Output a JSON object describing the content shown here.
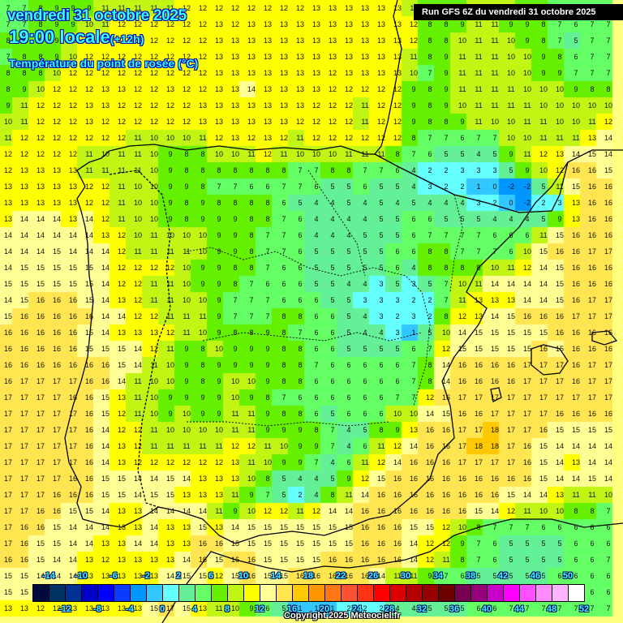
{
  "header": {
    "date_line": "vendredi 31 octobre 2025",
    "time_line": "19:00 locale",
    "time_offset": "(+12h)",
    "parameter": "Température du point de rosée (°C)"
  },
  "run_banner": "Run GFS 6Z du vendredi 31 octobre 2025",
  "copyright": "Copyright 2025 Meteociel.fr",
  "legend": {
    "top_labels": [
      "-14",
      "-10",
      "-6",
      "-2",
      "2",
      "6",
      "10",
      "14",
      "18",
      "22",
      "26",
      "30",
      "34",
      "38",
      "42",
      "46",
      "50"
    ],
    "bottom_labels": [
      "-12",
      "-8",
      "-4",
      "0",
      "4",
      "8",
      "12",
      "16",
      "20",
      "24",
      "28",
      "32",
      "36",
      "40",
      "44",
      "48",
      "52"
    ],
    "colors": [
      "#000a3c",
      "#003264",
      "#003296",
      "#0000c8",
      "#0000ff",
      "#0a3cff",
      "#0096ff",
      "#32c8ff",
      "#64ffff",
      "#64f096",
      "#64ff64",
      "#64f000",
      "#c0f514",
      "#ffff00",
      "#ffff96",
      "#ffe650",
      "#ffc800",
      "#ff9600",
      "#ff7814",
      "#ff5032",
      "#ff3214",
      "#ff0000",
      "#dc0000",
      "#b40000",
      "#960000",
      "#6e0000",
      "#780050",
      "#960078",
      "#c800c8",
      "#ff00ff",
      "#ff50ff",
      "#ff8cff",
      "#ffb4ff",
      "#ffffff"
    ]
  },
  "map": {
    "region": "Péninsule Ibérique",
    "grid_origin": [
      5,
      0
    ],
    "grid_step": 20,
    "rows": [
      "7 7 8 9 9 9 11 11 11 11 11 12 12 12 12 12 12 12 12 13 13 13 13 13 13 11 9 8 9 10 10 10 9 8 7 7 7 7",
      "7 7 8 9 9 10 11 12 12 12 12 12 12 13 12 13 13 13 13 13 13 13 13 13 13 12 8 8 9 11 11 9 9 8 7 6 7 7",
      "8 8 8 9 10 12 12 12 12 12 12 12 12 13 13 13 13 13 13 13 13 13 13 13 13 12 8 8 10 11 11 10 9 8 7 5 7 7",
      "7 8 8 9 10 12 12 12 12 12 12 12 12 13 13 13 13 13 13 13 13 13 13 13 13 11 8 9 11 11 11 10 10 9 8 6 7 7",
      "8 8 8 10 12 12 12 12 12 12 12 12 12 13 13 13 13 13 13 13 12 13 13 13 13 10 7 9 11 11 11 10 10 9 9 7 7 7",
      "8 9 10 12 12 12 13 13 12 12 13 12 12 13 13 14 13 13 13 13 12 12 12 12 12 9 8 9 11 11 11 11 10 10 10 9 8 8",
      "9 11 12 12 12 13 13 12 12 12 12 12 13 13 13 13 13 13 13 12 12 12 11 12 12 9 8 9 10 11 11 11 11 10 10 10 10 10",
      "10 11 12 12 12 13 12 12 12 12 12 12 13 13 13 13 13 13 12 12 12 12 11 12 12 9 8 8 9 11 10 10 11 11 10 10 11 12",
      "11 12 12 12 12 12 12 12 11 10 10 10 11 12 13 12 13 12 11 12 12 12 12 12 12 8 7 7 6 7 7 10 10 11 11 11 13 14",
      "12 12 12 12 12 11 10 11 11 10 9 8 8 10 10 11 12 11 10 10 10 11 11 11 8 7 6 5 5 4 5 9 11 12 13 14 15 14",
      "12 13 13 13 13 11 11 11 11 10 9 8 8 8 8 8 8 8 7 7 8 8 7 7 6 4 2 2 3 3 3 5 9 10 12 16 16 15",
      "13 13 13 13 13 12 12 11 10 10 9 9 8 7 7 6 6 7 7 6 5 5 6 5 5 4 3 2 2 1 0 -2 -2 5 11 15 16 16",
      "13 13 13 13 13 12 12 11 10 10 9 8 9 8 8 8 8 6 5 4 4 5 4 5 4 5 4 4 4 3 2 0 -2 2 3 13 16 16",
      "13 14 14 14 13 14 12 11 10 10 9 8 9 9 9 8 8 7 6 4 4 4 4 5 5 6 6 5 5 5 4 4 4 5 9 13 16 16",
      "14 14 14 14 14 14 13 12 10 11 10 10 10 9 9 8 7 7 6 4 4 4 5 5 5 6 7 7 7 7 6 6 6 11 15 16 16 16",
      "14 14 14 15 14 14 14 12 11 11 11 11 10 9 9 8 7 7 6 5 5 5 5 5 6 6 8 8 7 7 7 6 10 15 16 16 17 17",
      "14 15 15 15 15 15 14 12 12 12 12 10 9 9 8 8 7 6 6 5 5 5 5 5 6 4 8 8 8 8 10 11 12 14 15 16 16 16",
      "15 15 15 15 15 15 14 12 12 11 11 10 9 9 8 7 6 6 6 5 5 4 4 3 5 3 5 7 10 11 14 14 14 14 15 16 16 16",
      "14 15 16 16 16 15 14 13 12 11 11 10 10 9 7 7 7 6 6 6 5 5 3 3 3 2 2 7 11 13 13 13 14 14 15 16 17 17",
      "15 16 16 16 16 16 14 14 12 12 11 11 11 9 7 7 7 8 8 6 6 5 4 3 2 3 2 8 12 13 14 15 16 16 16 17 17 17",
      "16 16 16 16 16 15 14 13 13 13 12 11 10 9 8 8 9 8 7 6 6 5 4 4 3 1 5 10 14 15 15 15 15 15 16 16 16 16",
      "16 16 16 16 16 15 15 15 14 12 11 9 8 10 9 9 9 8 8 6 6 5 5 5 5 6 7 12 15 15 15 15 15 16 15 16 16 16",
      "16 16 16 16 16 16 16 15 14 11 10 9 8 9 9 9 9 8 8 7 6 6 6 6 6 7 8 14 16 16 16 16 17 17 17 16 17 17",
      "16 17 17 17 17 16 16 14 11 10 10 9 8 9 10 10 9 8 8 6 6 6 6 6 6 7 8 14 16 16 16 16 17 17 17 16 17 17",
      "17 17 17 17 16 16 15 13 11 10 9 9 9 9 10 9 8 7 6 6 6 6 6 6 7 7 12 16 17 17 17 17 17 17 17 17 17 17",
      "17 17 17 17 17 16 15 12 11 10 9 10 9 9 11 11 9 8 8 6 5 6 6 6 10 10 14 15 16 16 17 17 17 17 16 16 16 16",
      "17 17 17 17 17 16 14 12 12 11 10 10 10 10 11 11 9 9 9 8 7 4 5 8 9 13 16 16 17 17 18 17 17 16 15 15 15 15",
      "17 17 17 17 17 16 14 13 12 11 11 11 11 11 12 12 11 10 9 9 7 4 6 11 12 14 16 16 17 18 18 17 16 15 14 14 14 14",
      "17 17 17 17 17 16 14 13 12 12 12 12 12 12 13 11 10 9 9 7 4 6 11 12 14 16 16 16 17 17 17 17 16 15 14 13 14 14",
      "17 17 17 17 16 16 15 15 14 14 15 14 13 13 13 10 8 5 4 4 5 9 12 15 16 16 16 16 16 16 16 16 16 15 14 14 15 14",
      "17 17 17 16 16 16 15 15 14 15 15 13 13 13 11 9 7 5 2 4 8 11 14 16 16 16 16 16 16 16 16 15 14 14 13 11 11 10",
      "17 17 16 16 15 15 14 13 13 14 14 14 14 11 9 10 12 12 11 12 14 14 16 16 16 16 16 16 16 15 14 12 11 10 10 8 8 7",
      "17 16 16 15 14 14 14 13 13 14 13 13 15 13 14 15 15 15 15 15 15 15 16 16 16 15 15 12 10 8 7 7 7 6 6 6 6 6",
      "17 16 15 15 14 14 13 13 14 14 13 13 16 16 15 15 15 15 15 15 15 15 16 16 16 14 12 12 9 7 6 5 5 5 5 6 6 6",
      "16 16 15 14 14 13 12 13 13 13 13 14 16 15 16 16 15 15 15 15 16 16 16 16 16 14 12 11 8 7 6 5 5 5 5 6 6 7",
      "15 15 14 14 14 13 13 13 13 13 14 15 15 12 15 16 15 15 16 16 16 16 16 14 11 11 9 7 6 5 5 5 5 5 6 6 6 6",
      "15 15 14 14 13 12 13 13 13 13 14 15 16 15 13 15 12 15 15 16 16 16 16 14 11 10 9 7 6 5 4 4 4 5 5 6 6 6",
      "13 13 12 12 13 13 13 13 13 15 17 15 13 11 10 9 6 5 1 1 1 2 2 2 4 4 5 5 5 6 6 7 7 7 7 7 7 7"
    ]
  }
}
